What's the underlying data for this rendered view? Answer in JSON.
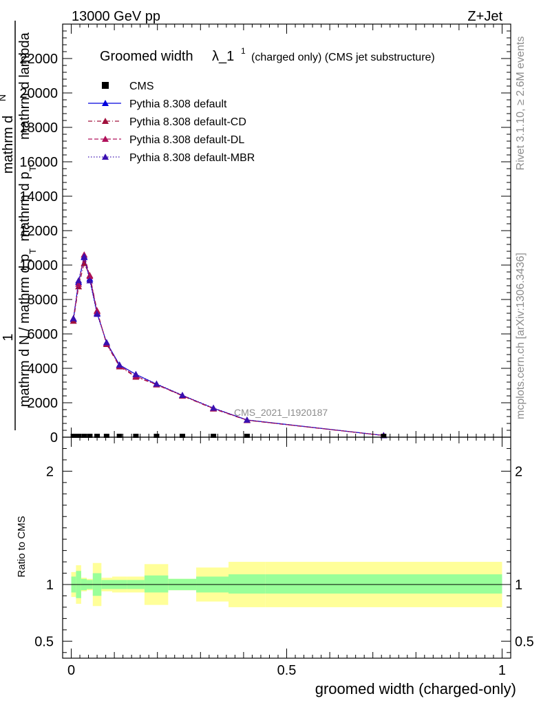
{
  "header": {
    "left": "13000 GeV pp",
    "right": "Z+Jet"
  },
  "title": {
    "main": "Groomed width",
    "lambda": "λ_1",
    "sup": "1",
    "suffix": "(charged only) (CMS jet substructure)"
  },
  "side_labels": {
    "rivet": "Rivet 3.1.10, ≥ 2.6M events",
    "mcplots": "mcplots.cern.ch [arXiv:1306.3436]",
    "watermark": "CMS_2021_I1920187"
  },
  "ylabel_main": {
    "one": "1",
    "num_a": "mathrm d",
    "num_b": "N",
    "num_c": "mathrm d p",
    "num_sub": "T",
    "num_d": "mathrm d lambda",
    "den": "mathrm d N / mathrm d p",
    "den_sub": "T"
  },
  "ylabel_ratio": "Ratio to CMS",
  "xlabel": "groomed width (charged-only)",
  "legend": [
    {
      "label": "CMS",
      "color": "#000000",
      "marker": "square",
      "dash": "none"
    },
    {
      "label": "Pythia 8.308 default",
      "color": "#0000dd",
      "marker": "triangle",
      "dash": "solid"
    },
    {
      "label": "Pythia 8.308 default-CD",
      "color": "#a0103c",
      "marker": "triangle",
      "dash": "dashdot"
    },
    {
      "label": "Pythia 8.308 default-DL",
      "color": "#b0105a",
      "marker": "triangle",
      "dash": "dash"
    },
    {
      "label": "Pythia 8.308 default-MBR",
      "color": "#3a10b0",
      "marker": "triangle",
      "dash": "dot"
    }
  ],
  "chart_data": {
    "type": "line",
    "x_ticks": [
      "0",
      "0.5",
      "1"
    ],
    "main_y_ticks": [
      "0",
      "2000",
      "4000",
      "6000",
      "8000",
      "10000",
      "12000",
      "14000",
      "16000",
      "18000",
      "20000",
      "22000"
    ],
    "ratio_y_ticks": [
      "0.5",
      "1",
      "2"
    ],
    "xlim": [
      -0.02,
      1.02
    ],
    "ylim_main": [
      0,
      24000
    ],
    "ylim_ratio": [
      0.35,
      2.3
    ],
    "cms": {
      "x": [
        0.005,
        0.017,
        0.03,
        0.043,
        0.06,
        0.082,
        0.112,
        0.15,
        0.198,
        0.258,
        0.33,
        0.408,
        0.725
      ],
      "y": [
        0,
        0,
        0,
        0,
        0,
        0,
        0,
        0,
        0,
        0,
        0,
        0,
        0
      ]
    },
    "series": [
      {
        "name": "Pythia 8.308 default",
        "x": [
          0.005,
          0.017,
          0.03,
          0.043,
          0.06,
          0.082,
          0.112,
          0.15,
          0.198,
          0.258,
          0.33,
          0.408,
          0.725
        ],
        "y": [
          6850,
          9000,
          10450,
          9200,
          7200,
          5500,
          4200,
          3650,
          3080,
          2430,
          1680,
          1000,
          100
        ]
      },
      {
        "name": "Pythia 8.308 default-CD",
        "x": [
          0.005,
          0.017,
          0.03,
          0.043,
          0.06,
          0.082,
          0.112,
          0.15,
          0.198,
          0.258,
          0.33,
          0.408,
          0.725
        ],
        "y": [
          6750,
          8750,
          10100,
          9400,
          7350,
          5400,
          4100,
          3500,
          3050,
          2400,
          1650,
          980,
          98
        ]
      },
      {
        "name": "Pythia 8.308 default-DL",
        "x": [
          0.005,
          0.017,
          0.03,
          0.043,
          0.06,
          0.082,
          0.112,
          0.15,
          0.198,
          0.258,
          0.33,
          0.408,
          0.725
        ],
        "y": [
          6900,
          8900,
          10600,
          9350,
          7300,
          5450,
          4150,
          3550,
          3060,
          2420,
          1670,
          990,
          99
        ]
      },
      {
        "name": "Pythia 8.308 default-MBR",
        "x": [
          0.005,
          0.017,
          0.03,
          0.043,
          0.06,
          0.082,
          0.112,
          0.15,
          0.198,
          0.258,
          0.33,
          0.408,
          0.725
        ],
        "y": [
          6900,
          9100,
          10500,
          9100,
          7150,
          5500,
          4200,
          3650,
          3100,
          2440,
          1700,
          1000,
          100
        ]
      }
    ],
    "ratio_bands": {
      "x_edges": [
        0.0,
        0.011,
        0.023,
        0.036,
        0.05,
        0.07,
        0.095,
        0.13,
        0.17,
        0.225,
        0.29,
        0.365,
        0.45,
        1.0
      ],
      "green_lo": [
        0.93,
        0.88,
        0.95,
        0.96,
        0.9,
        0.96,
        0.96,
        0.96,
        0.93,
        0.95,
        0.93,
        0.92,
        0.92
      ],
      "green_hi": [
        1.07,
        1.12,
        1.05,
        1.04,
        1.1,
        1.04,
        1.04,
        1.04,
        1.08,
        1.05,
        1.07,
        1.09,
        1.09
      ],
      "yellow_lo": [
        0.89,
        0.83,
        0.94,
        0.95,
        0.81,
        0.94,
        0.93,
        0.93,
        0.82,
        0.95,
        0.85,
        0.8,
        0.8
      ],
      "yellow_hi": [
        1.11,
        1.17,
        1.06,
        1.05,
        1.19,
        1.06,
        1.07,
        1.07,
        1.18,
        1.05,
        1.15,
        1.2,
        1.2
      ]
    }
  }
}
